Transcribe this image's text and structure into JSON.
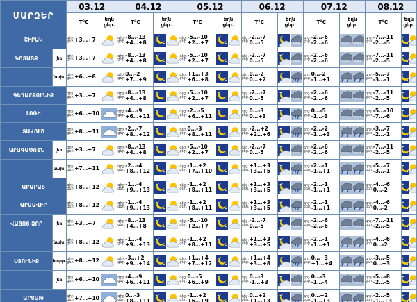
{
  "header": {
    "region_title": "ՄԱՐԶԵՐ",
    "temp_label": "T°C",
    "precip_top": "եղն",
    "day_label": "ցեր.",
    "night_label": "գիշ."
  },
  "days": [
    "03.12",
    "04.12",
    "05.12",
    "06.12",
    "07.12",
    "08.12"
  ],
  "icon_legend": {
    "sun-cloud": "partly cloudy day",
    "cloud": "cloudy",
    "moon": "clear night",
    "moon-cloud": "partly cloudy night",
    "rain": "cloud with rain",
    "snow": "cloud with snow",
    "sleet": "cloud with rain and snow"
  },
  "rows": [
    {
      "region": "ՇԻՐԱԿ",
      "sub": "",
      "lbl": "գիշ. ցեր.",
      "cells": [
        {
          "t": [
            "",
            "+3…+7"
          ],
          "icons": [
            "sun-cloud"
          ]
        },
        {
          "t": [
            "-8…-13",
            "+4…+8"
          ],
          "icons": [
            "moon",
            "sun-cloud"
          ]
        },
        {
          "t": [
            "-5…-10",
            "+2…+7"
          ],
          "icons": [
            "moon",
            "sun-cloud"
          ]
        },
        {
          "t": [
            "-2…-7",
            "0…-5"
          ],
          "icons": [
            "moon-cloud",
            "snow"
          ]
        },
        {
          "t": [
            "-2…-6",
            "-2…-6"
          ],
          "icons": [
            "snow",
            "snow"
          ]
        },
        {
          "t": [
            "-7…-11",
            "-2…-5"
          ],
          "icons": [
            "moon",
            "sun-cloud"
          ]
        }
      ]
    },
    {
      "region": "ԿՈՏԱՅՔ",
      "sub": "լեռ.",
      "lbl": "գիշ. ցեր.",
      "cells": [
        {
          "t": [
            "",
            "+3…+7"
          ],
          "icons": [
            "sun-cloud"
          ]
        },
        {
          "t": [
            "-8…-13",
            "+4…+8"
          ],
          "icons": [
            "moon",
            "sun-cloud"
          ]
        },
        {
          "t": [
            "-5…-10",
            "+2…+7"
          ],
          "icons": [
            "moon",
            "sun-cloud"
          ]
        },
        {
          "t": [
            "-2…-7",
            "0…-5"
          ],
          "icons": [
            "moon-cloud",
            "snow"
          ]
        },
        {
          "t": [
            "-2…-6",
            "-2…-6"
          ],
          "icons": [
            "snow",
            "snow"
          ]
        },
        {
          "t": [
            "-7…-11",
            "-2…-5"
          ],
          "icons": [
            "moon",
            "sun-cloud"
          ]
        }
      ]
    },
    {
      "region": "",
      "sub": "նախ.",
      "lbl": "գիշ. ցեր.",
      "cells": [
        {
          "t": [
            "",
            "+6…+8"
          ],
          "icons": [
            "sun-cloud"
          ]
        },
        {
          "t": [
            "0…-2",
            "+7…+9"
          ],
          "icons": [
            "moon",
            "sun-cloud"
          ]
        },
        {
          "t": [
            "+1…+3",
            "+6…+8"
          ],
          "icons": [
            "moon",
            "sun-cloud"
          ]
        },
        {
          "t": [
            "0…-2",
            "0…+2"
          ],
          "icons": [
            "moon-cloud",
            "rain"
          ]
        },
        {
          "t": [
            "0…-2",
            "-1…+1"
          ],
          "icons": [
            "sleet",
            "sleet"
          ]
        },
        {
          "t": [
            "-5…-7",
            "-3…-1"
          ],
          "icons": [
            "moon",
            "sun-cloud"
          ]
        }
      ]
    },
    {
      "region": "ԳԵՂԱՐՔՈՒՆԻՔ",
      "sub": "",
      "lbl": "գիշ. ցեր.",
      "cells": [
        {
          "t": [
            "",
            "+3…+7"
          ],
          "icons": [
            "sun-cloud"
          ]
        },
        {
          "t": [
            "-8…-13",
            "+4…+8"
          ],
          "icons": [
            "moon",
            "sun-cloud"
          ]
        },
        {
          "t": [
            "-5…-10",
            "+2…+7"
          ],
          "icons": [
            "moon",
            "sun-cloud"
          ]
        },
        {
          "t": [
            "-2…-7",
            "0…-5"
          ],
          "icons": [
            "moon-cloud",
            "snow"
          ]
        },
        {
          "t": [
            "-2…-6",
            "-2…-6"
          ],
          "icons": [
            "snow",
            "snow"
          ]
        },
        {
          "t": [
            "-7…-11",
            "-2…-5"
          ],
          "icons": [
            "moon",
            "sun-cloud"
          ]
        }
      ]
    },
    {
      "region": "ԼՈՌԻ",
      "sub": "",
      "lbl": "գիշ. ցեր.",
      "cells": [
        {
          "t": [
            "",
            "+6…+10"
          ],
          "icons": [
            "cloud"
          ]
        },
        {
          "t": [
            "-4…-9",
            "+6…+11"
          ],
          "icons": [
            "moon",
            "sun-cloud"
          ]
        },
        {
          "t": [
            "-2…-5",
            "+6…+11"
          ],
          "icons": [
            "moon",
            "sun-cloud"
          ]
        },
        {
          "t": [
            "0…-3",
            "0…+3"
          ],
          "icons": [
            "moon-cloud",
            "rain"
          ]
        },
        {
          "t": [
            "0…-5",
            "-1…-3"
          ],
          "icons": [
            "snow",
            "snow"
          ]
        },
        {
          "t": [
            "-5…-10",
            "-7…-6"
          ],
          "icons": [
            "moon",
            "sun-cloud"
          ]
        }
      ]
    },
    {
      "region": "ՏԱՎՈՒՇ",
      "sub": "",
      "lbl": "գիշ. ցեր.",
      "cells": [
        {
          "t": [
            "",
            "+8…+11"
          ],
          "icons": [
            "cloud"
          ]
        },
        {
          "t": [
            "-2…-7",
            "+8…+12"
          ],
          "icons": [
            "moon",
            "sun-cloud"
          ]
        },
        {
          "t": [
            "0…-3",
            "+8…+11"
          ],
          "icons": [
            "moon",
            "sun-cloud"
          ]
        },
        {
          "t": [
            "-2…+2",
            "+2…+6"
          ],
          "icons": [
            "moon-cloud",
            "rain"
          ]
        },
        {
          "t": [
            "-2…-2",
            "-1…+3"
          ],
          "icons": [
            "sleet",
            "sleet"
          ]
        },
        {
          "t": [
            "-3…-7",
            "-2…-1"
          ],
          "icons": [
            "moon",
            "sun-cloud"
          ]
        }
      ]
    },
    {
      "region": "ԱՐԱԳԱԾՈՏՆ",
      "sub": "լեռ.",
      "lbl": "գիշ. ցեր.",
      "cells": [
        {
          "t": [
            "",
            "+3…+7"
          ],
          "icons": [
            "sun-cloud"
          ]
        },
        {
          "t": [
            "-8…-13",
            "+4…+8"
          ],
          "icons": [
            "moon",
            "sun-cloud"
          ]
        },
        {
          "t": [
            "-5…-10",
            "+2…+7"
          ],
          "icons": [
            "moon",
            "sun-cloud"
          ]
        },
        {
          "t": [
            "-2…-7",
            "0…-5"
          ],
          "icons": [
            "moon-cloud",
            "snow"
          ]
        },
        {
          "t": [
            "-2…-6",
            "-2…-6"
          ],
          "icons": [
            "snow",
            "snow"
          ]
        },
        {
          "t": [
            "-7…-11",
            "-2…-5"
          ],
          "icons": [
            "moon",
            "sun-cloud"
          ]
        }
      ]
    },
    {
      "region": "",
      "sub": "նախ.",
      "lbl": "գիշ. ցեր.",
      "cells": [
        {
          "t": [
            "",
            "+7…+11"
          ],
          "icons": [
            "sun-cloud"
          ]
        },
        {
          "t": [
            "-2…-4",
            "+8…+12"
          ],
          "icons": [
            "moon",
            "sun-cloud"
          ]
        },
        {
          "t": [
            "-1…+2",
            "+7…+10"
          ],
          "icons": [
            "moon",
            "sun-cloud"
          ]
        },
        {
          "t": [
            "+1…+3",
            "+3…+5"
          ],
          "icons": [
            "moon-cloud",
            "rain"
          ]
        },
        {
          "t": [
            "-2…-1",
            "-1…+1"
          ],
          "icons": [
            "sleet",
            "sleet"
          ]
        },
        {
          "t": [
            "-5…-7",
            "-3…-1"
          ],
          "icons": [
            "moon",
            "sun-cloud"
          ]
        }
      ]
    },
    {
      "region": "ԱՐԱՐԱՏ",
      "sub": "",
      "lbl": "գիշ. ցեր.",
      "cells": [
        {
          "t": [
            "",
            "+8…+12"
          ],
          "icons": [
            "sun-cloud"
          ]
        },
        {
          "t": [
            "-1…-4",
            "+9…+13"
          ],
          "icons": [
            "moon",
            "sun-cloud"
          ]
        },
        {
          "t": [
            "-1…+2",
            "+8…+11"
          ],
          "icons": [
            "moon",
            "sun-cloud"
          ]
        },
        {
          "t": [
            "+1…+3",
            "+3…+5"
          ],
          "icons": [
            "moon-cloud",
            "rain"
          ]
        },
        {
          "t": [
            "-2…-1",
            "-1…+1"
          ],
          "icons": [
            "sleet",
            "sleet"
          ]
        },
        {
          "t": [
            "-4…-6",
            "0…-2"
          ],
          "icons": [
            "moon",
            "sun-cloud"
          ]
        }
      ]
    },
    {
      "region": "ԱՐՄԱՎԻՐ",
      "sub": "",
      "lbl": "գիշ. ցեր.",
      "cells": [
        {
          "t": [
            "",
            "+8…+12"
          ],
          "icons": [
            "sun-cloud"
          ]
        },
        {
          "t": [
            "-1…-4",
            "+9…+13"
          ],
          "icons": [
            "moon",
            "sun-cloud"
          ]
        },
        {
          "t": [
            "-1…+2",
            "+8…+11"
          ],
          "icons": [
            "moon",
            "sun-cloud"
          ]
        },
        {
          "t": [
            "+1…+3",
            "+3…+5"
          ],
          "icons": [
            "moon-cloud",
            "rain"
          ]
        },
        {
          "t": [
            "-2…-1",
            "-1…+1"
          ],
          "icons": [
            "sleet",
            "sleet"
          ]
        },
        {
          "t": [
            "-4…-6",
            "0…-2"
          ],
          "icons": [
            "moon",
            "sun-cloud"
          ]
        }
      ]
    },
    {
      "region": "ՎԱՅՈՑ ՁՈՐ",
      "sub": "լեռ.",
      "lbl": "գիշ. ցեր.",
      "cells": [
        {
          "t": [
            "",
            "+3…+7"
          ],
          "icons": [
            "sun-cloud"
          ]
        },
        {
          "t": [
            "-8…-13",
            "+4…+8"
          ],
          "icons": [
            "moon",
            "sun-cloud"
          ]
        },
        {
          "t": [
            "-5…-10",
            "+2…+7"
          ],
          "icons": [
            "moon",
            "sun-cloud"
          ]
        },
        {
          "t": [
            "-2…-7",
            "0…-5"
          ],
          "icons": [
            "moon-cloud",
            "snow"
          ]
        },
        {
          "t": [
            "-2…-6",
            "-2…-6"
          ],
          "icons": [
            "snow",
            "snow"
          ]
        },
        {
          "t": [
            "-7…-11",
            "-2…-5"
          ],
          "icons": [
            "moon",
            "sun-cloud"
          ]
        }
      ]
    },
    {
      "region": "",
      "sub": "նախ.",
      "lbl": "գիշ. ցեր.",
      "cells": [
        {
          "t": [
            "",
            "+8…+12"
          ],
          "icons": [
            "sun-cloud"
          ]
        },
        {
          "t": [
            "-1…-4",
            "+9…+13"
          ],
          "icons": [
            "moon",
            "sun-cloud"
          ]
        },
        {
          "t": [
            "-1…+2",
            "+8…+11"
          ],
          "icons": [
            "moon",
            "sun-cloud"
          ]
        },
        {
          "t": [
            "+1…+3",
            "+3…+5"
          ],
          "icons": [
            "moon-cloud",
            "rain"
          ]
        },
        {
          "t": [
            "-2…-1",
            "-1…+1"
          ],
          "icons": [
            "sleet",
            "sleet"
          ]
        },
        {
          "t": [
            "-4…-6",
            "0…-2"
          ],
          "icons": [
            "moon",
            "sun-cloud"
          ]
        }
      ]
    },
    {
      "region": "ՍՅՈՒՆԻՔ",
      "sub": "հարթ.",
      "lbl": "գիշ. ցեր.",
      "cells": [
        {
          "t": [
            "",
            "+8…+12"
          ],
          "icons": [
            "sun-cloud"
          ]
        },
        {
          "t": [
            "-3…+2",
            "+9…+14"
          ],
          "icons": [
            "moon",
            "sun-cloud"
          ]
        },
        {
          "t": [
            "+1…+4",
            "+7…+12"
          ],
          "icons": [
            "moon",
            "sun-cloud"
          ]
        },
        {
          "t": [
            "+1…+4",
            "+3…+8"
          ],
          "icons": [
            "moon-cloud",
            "rain"
          ]
        },
        {
          "t": [
            "0…+3",
            "+1…+4"
          ],
          "icons": [
            "sleet",
            "sleet"
          ]
        },
        {
          "t": [
            "-3…-5",
            "0…+3"
          ],
          "icons": [
            "moon",
            "sun-cloud"
          ]
        }
      ]
    },
    {
      "region": "",
      "sub": "լեռ.",
      "lbl": "գիշ. ցեր.",
      "cells": [
        {
          "t": [
            "",
            "+6…+10"
          ],
          "icons": [
            "cloud"
          ]
        },
        {
          "t": [
            "-4…-9",
            "+6…+11"
          ],
          "icons": [
            "moon",
            "sun-cloud"
          ]
        },
        {
          "t": [
            "0…-5",
            "+6…+9"
          ],
          "icons": [
            "moon",
            "sun-cloud"
          ]
        },
        {
          "t": [
            "0…-3",
            "-1…+3"
          ],
          "icons": [
            "moon-cloud",
            "snow"
          ]
        },
        {
          "t": [
            "0…-3",
            "-1…-4"
          ],
          "icons": [
            "snow",
            "snow"
          ]
        },
        {
          "t": [
            "-5…-8",
            "-2…-5"
          ],
          "icons": [
            "moon",
            "sun-cloud"
          ]
        }
      ]
    },
    {
      "region": "ԱՐՑԱԽ",
      "sub": "",
      "lbl": "գիշ. ցեր.",
      "cells": [
        {
          "t": [
            "",
            "+7…+10"
          ],
          "icons": [
            "cloud"
          ]
        },
        {
          "t": [
            "0…-3",
            "+8…+11"
          ],
          "icons": [
            "moon",
            "sun-cloud"
          ]
        },
        {
          "t": [
            "-1…+2",
            "+6…+9"
          ],
          "icons": [
            "moon",
            "sun-cloud"
          ]
        },
        {
          "t": [
            "0…+2",
            "+1…+3"
          ],
          "icons": [
            "moon-cloud",
            "rain"
          ]
        },
        {
          "t": [
            "0…+2",
            "-1…+3"
          ],
          "icons": [
            "sleet",
            "sleet"
          ]
        },
        {
          "t": [
            "-2…-5",
            "-1…+3"
          ],
          "icons": [
            "moon",
            "sun-cloud"
          ]
        }
      ]
    }
  ]
}
